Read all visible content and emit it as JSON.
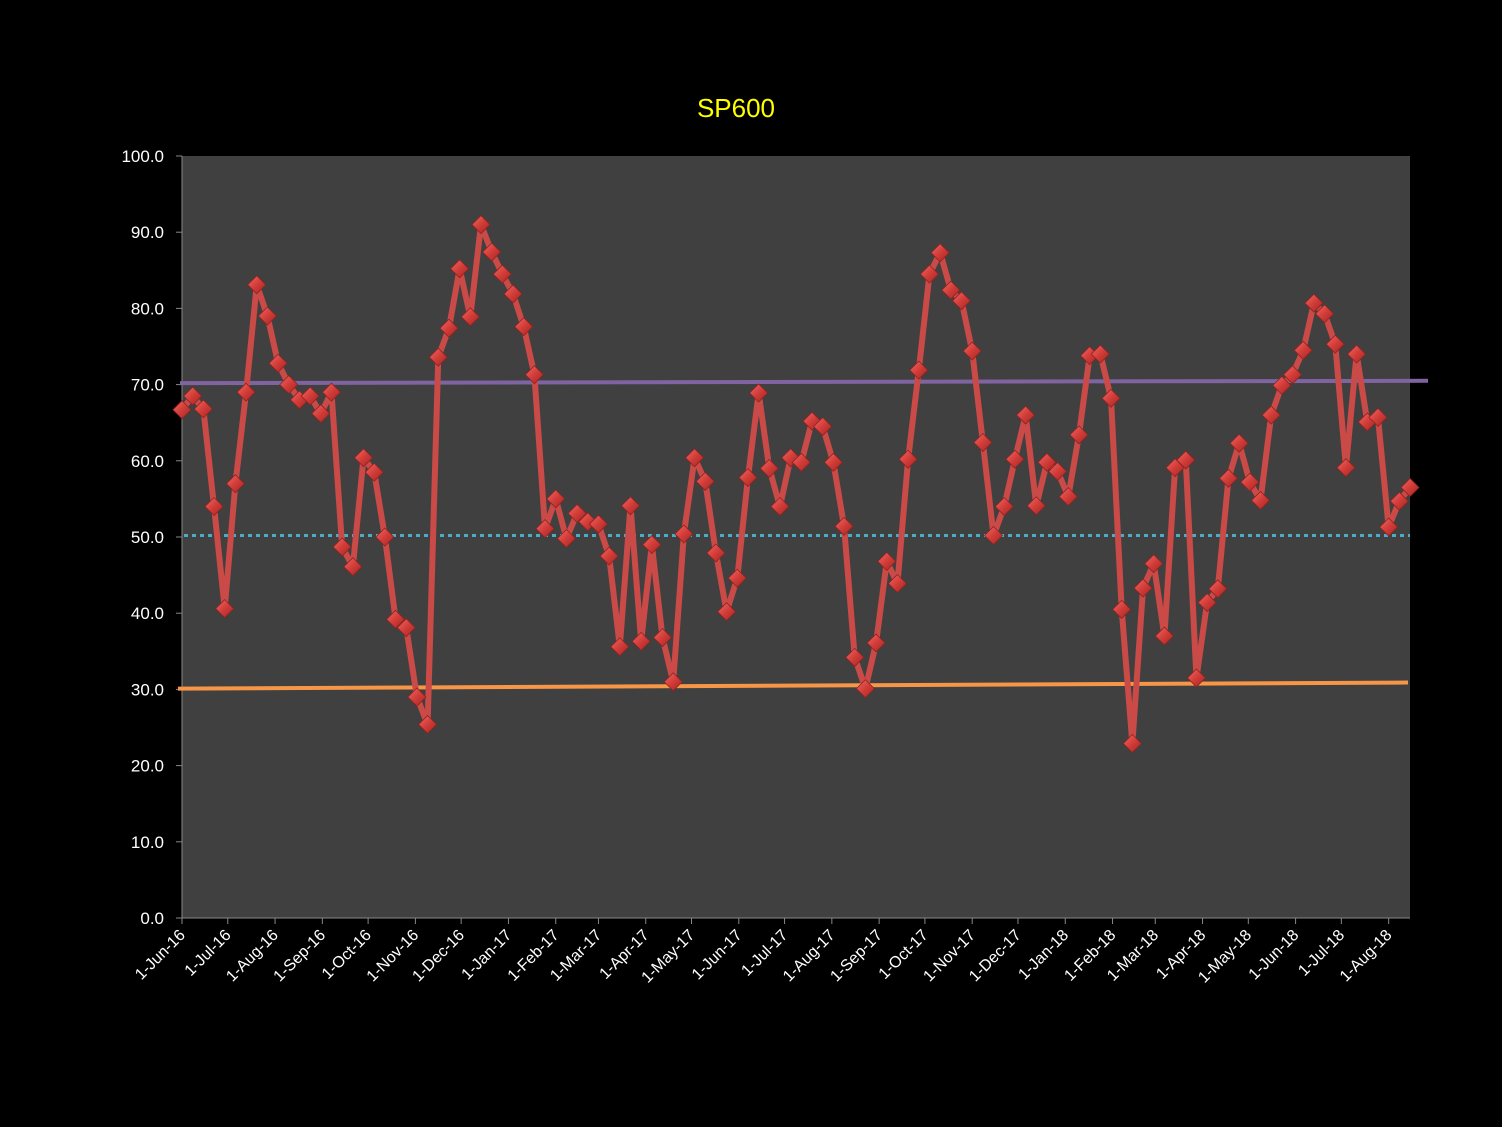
{
  "chart_data": {
    "type": "line",
    "title": "SP600",
    "xlabel": "",
    "ylabel": "",
    "x_start": "2016-06-01",
    "x_interval_days": 7,
    "x_range": [
      "2016-06-01",
      "2018-08-15"
    ],
    "ylim": [
      0,
      100
    ],
    "y_ticks": [
      "0.0",
      "10.0",
      "20.0",
      "30.0",
      "40.0",
      "50.0",
      "60.0",
      "70.0",
      "80.0",
      "90.0",
      "100.0"
    ],
    "x_ticks": [
      {
        "label": "1-Jun-16",
        "date": "2016-06-01"
      },
      {
        "label": "1-Jul-16",
        "date": "2016-07-01"
      },
      {
        "label": "1-Aug-16",
        "date": "2016-08-01"
      },
      {
        "label": "1-Sep-16",
        "date": "2016-09-01"
      },
      {
        "label": "1-Oct-16",
        "date": "2016-10-01"
      },
      {
        "label": "1-Nov-16",
        "date": "2016-11-01"
      },
      {
        "label": "1-Dec-16",
        "date": "2016-12-01"
      },
      {
        "label": "1-Jan-17",
        "date": "2017-01-01"
      },
      {
        "label": "1-Feb-17",
        "date": "2017-02-01"
      },
      {
        "label": "1-Mar-17",
        "date": "2017-03-01"
      },
      {
        "label": "1-Apr-17",
        "date": "2017-04-01"
      },
      {
        "label": "1-May-17",
        "date": "2017-05-01"
      },
      {
        "label": "1-Jun-17",
        "date": "2017-06-01"
      },
      {
        "label": "1-Jul-17",
        "date": "2017-07-01"
      },
      {
        "label": "1-Aug-17",
        "date": "2017-08-01"
      },
      {
        "label": "1-Sep-17",
        "date": "2017-09-01"
      },
      {
        "label": "1-Oct-17",
        "date": "2017-10-01"
      },
      {
        "label": "1-Nov-17",
        "date": "2017-11-01"
      },
      {
        "label": "1-Dec-17",
        "date": "2017-12-01"
      },
      {
        "label": "1-Jan-18",
        "date": "2018-01-01"
      },
      {
        "label": "1-Feb-18",
        "date": "2018-02-01"
      },
      {
        "label": "1-Mar-18",
        "date": "2018-03-01"
      },
      {
        "label": "1-Apr-18",
        "date": "2018-04-01"
      },
      {
        "label": "1-May-18",
        "date": "2018-05-01"
      },
      {
        "label": "1-Jun-18",
        "date": "2018-06-01"
      },
      {
        "label": "1-Jul-18",
        "date": "2018-07-01"
      },
      {
        "label": "1-Aug-18",
        "date": "2018-08-01"
      }
    ],
    "series": [
      {
        "name": "SP600",
        "color": "#c94a47",
        "values": [
          66.7,
          68.5,
          66.8,
          54.0,
          40.6,
          57.0,
          69.0,
          83.1,
          79.0,
          72.8,
          70.0,
          68.0,
          68.5,
          66.2,
          69.0,
          48.7,
          46.1,
          60.4,
          58.5,
          50.0,
          39.2,
          38.1,
          29.0,
          25.4,
          73.6,
          77.4,
          85.2,
          78.9,
          91.0,
          87.4,
          84.5,
          81.9,
          77.6,
          71.3,
          51.1,
          55.0,
          49.8,
          53.1,
          52.0,
          51.7,
          47.5,
          35.6,
          54.1,
          36.3,
          49.0,
          36.8,
          31.0,
          50.4,
          60.4,
          57.3,
          47.9,
          40.2,
          44.6,
          57.8,
          68.9,
          59.0,
          54.0,
          60.4,
          59.8,
          65.2,
          64.5,
          59.8,
          51.4,
          34.2,
          30.1,
          36.1,
          46.8,
          43.9,
          60.2,
          71.9,
          84.5,
          87.3,
          82.4,
          81.0,
          74.4,
          62.4,
          50.2,
          54.0,
          60.2,
          66.0,
          54.1,
          59.8,
          58.6,
          55.3,
          63.4,
          73.8,
          74.0,
          68.2,
          40.5,
          22.9,
          43.3,
          46.5,
          37.0,
          59.1,
          60.1,
          31.5,
          41.4,
          43.2,
          57.7,
          62.3,
          57.2,
          54.8,
          66.0,
          69.9,
          71.3,
          74.5,
          80.7,
          79.3,
          75.3,
          59.1,
          74.0,
          65.1,
          65.7,
          51.3,
          54.7,
          56.5
        ]
      }
    ],
    "reference_lines": [
      {
        "name": "upper",
        "color": "#8064a2",
        "style": "solid",
        "start": 70.2,
        "end": 70.5
      },
      {
        "name": "middle",
        "color": "#4bacc6",
        "style": "dotted",
        "start": 50.2,
        "end": 50.2
      },
      {
        "name": "lower",
        "color": "#f79646",
        "style": "solid",
        "start": 30.1,
        "end": 30.9
      }
    ],
    "grid": false,
    "legend": "none",
    "colors": {
      "background": "#000000",
      "plot_area": "#404040",
      "title": "#ffff00",
      "text": "#ffffff"
    }
  }
}
